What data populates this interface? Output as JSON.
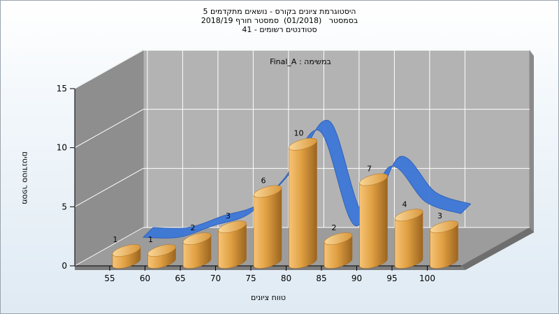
{
  "chart_data": {
    "type": "bar",
    "title_lines": [
      "היסטוגרמת ציונים בקורס - נושאים מתקדמים 5",
      "בסמסטר   (01/2018)  סמסטר חורף 2018/19",
      "סטודנטים רשומים - 41"
    ],
    "inner_label": "במשימה : Final_A",
    "xlabel": "טווח ציונים",
    "ylabel": "מספר סטודנטים",
    "categories": [
      "55",
      "60",
      "65",
      "70",
      "75",
      "80",
      "85",
      "90",
      "95",
      "100"
    ],
    "values": [
      1,
      1,
      2,
      3,
      6,
      10,
      2,
      7,
      4,
      3
    ],
    "y_ticks": [
      0,
      5,
      10,
      15
    ],
    "ylim": [
      0,
      15
    ],
    "grid": true,
    "colors": {
      "bar": "#e8a74a",
      "curve": "#3c78d8",
      "wall": "#b3b3b3",
      "left_wall": "#8e8e8e",
      "floor": "#9c9c9c"
    }
  }
}
